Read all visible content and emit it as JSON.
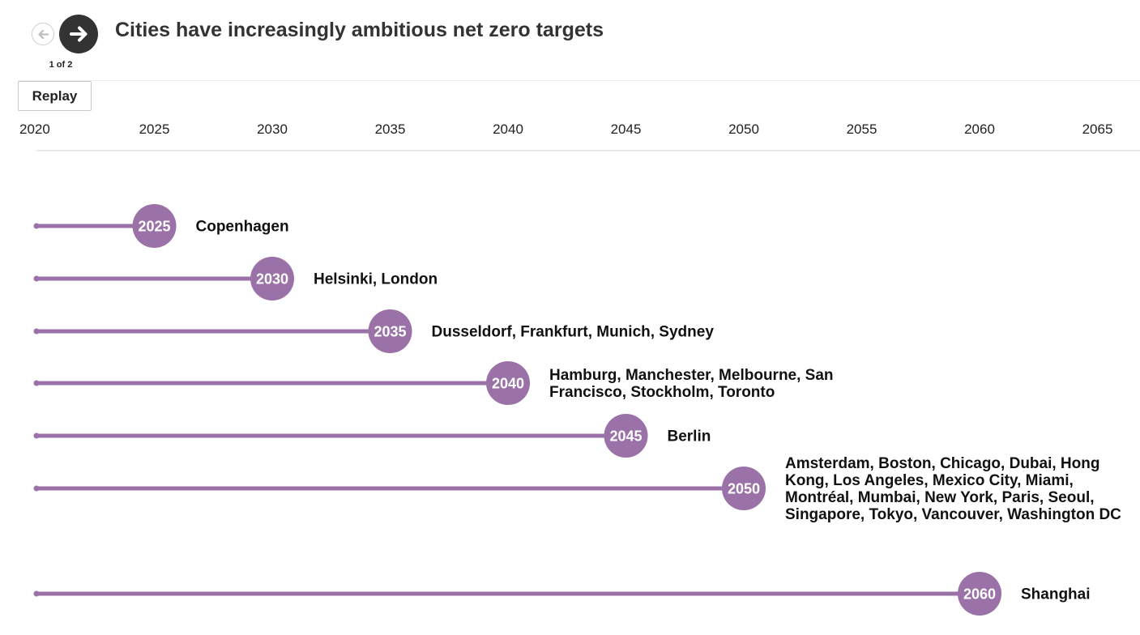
{
  "header": {
    "title": "Cities have increasingly ambitious net zero targets",
    "pager": "1 of 2",
    "prev_icon": "arrow-left-icon",
    "next_icon": "arrow-right-icon"
  },
  "controls": {
    "replay_label": "Replay"
  },
  "colors": {
    "accent": "#9b72a8",
    "axis_rule": "#e2e2e2",
    "next_button": "#333333"
  },
  "chart_data": {
    "type": "timeline",
    "x_start": 2020,
    "x_ticks": [
      2020,
      2025,
      2030,
      2035,
      2040,
      2045,
      2050,
      2055,
      2060,
      2065
    ],
    "xlim": [
      2020,
      2065
    ],
    "grid": false,
    "rows": [
      {
        "year": 2025,
        "year_label": "2025",
        "cities": "Copenhagen"
      },
      {
        "year": 2030,
        "year_label": "2030",
        "cities": "Helsinki, London"
      },
      {
        "year": 2035,
        "year_label": "2035",
        "cities": "Dusseldorf, Frankfurt, Munich, Sydney"
      },
      {
        "year": 2040,
        "year_label": "2040",
        "cities": "Hamburg, Manchester, Melbourne, San Francisco, Stockholm, Toronto"
      },
      {
        "year": 2045,
        "year_label": "2045",
        "cities": "Berlin"
      },
      {
        "year": 2050,
        "year_label": "2050",
        "cities": "Amsterdam, Boston, Chicago, Dubai, Hong Kong, Los Angeles, Mexico City, Miami, Montréal, Mumbai, New York, Paris, Seoul, Singapore, Tokyo, Vancouver, Washington DC"
      },
      {
        "year": 2060,
        "year_label": "2060",
        "cities": "Shanghai"
      }
    ]
  }
}
